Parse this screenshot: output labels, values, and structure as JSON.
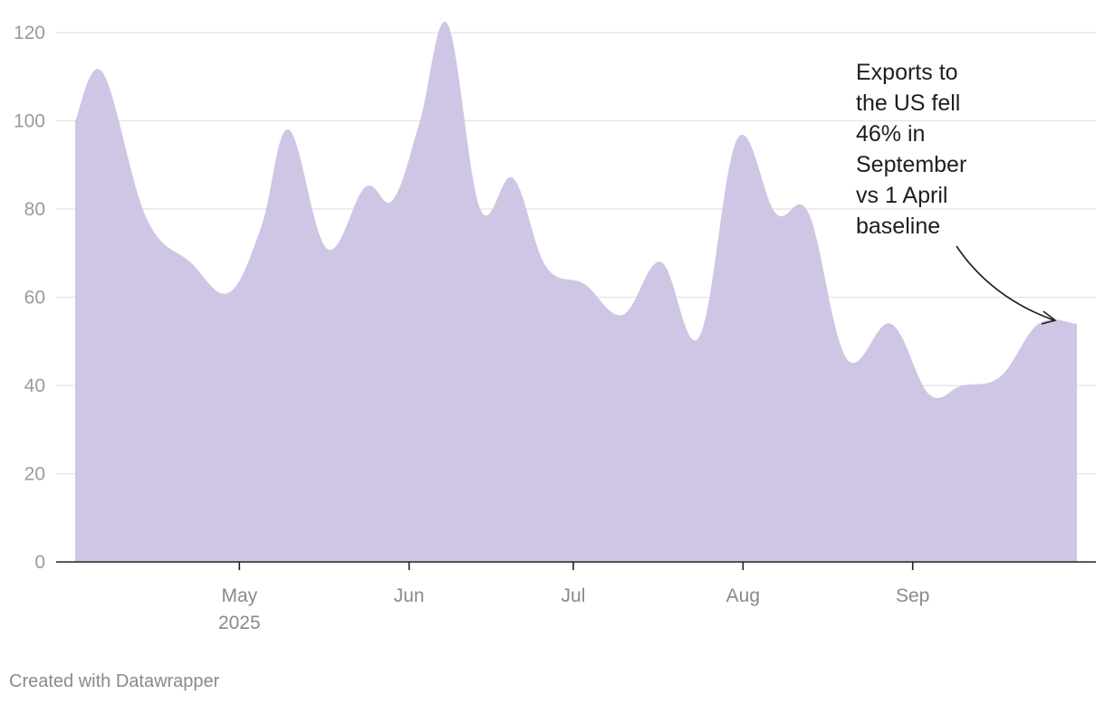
{
  "footer": {
    "credit": "Created with Datawrapper"
  },
  "chart_data": {
    "type": "area",
    "title": "",
    "xlabel": "",
    "ylabel": "",
    "color": "#cfc6e6",
    "ylim": [
      0,
      120
    ],
    "yticks": [
      "0",
      "20",
      "40",
      "60",
      "80",
      "100",
      "120"
    ],
    "xticks": [
      {
        "date": "2025-05-01",
        "label": "May",
        "sublabel": "2025"
      },
      {
        "date": "2025-06-01",
        "label": "Jun",
        "sublabel": ""
      },
      {
        "date": "2025-07-01",
        "label": "Jul",
        "sublabel": ""
      },
      {
        "date": "2025-08-01",
        "label": "Aug",
        "sublabel": ""
      },
      {
        "date": "2025-09-01",
        "label": "Sep",
        "sublabel": ""
      }
    ],
    "grid": true,
    "x": [
      "2025-04-01",
      "2025-04-06",
      "2025-04-14",
      "2025-04-22",
      "2025-04-29",
      "2025-05-05",
      "2025-05-10",
      "2025-05-17",
      "2025-05-24",
      "2025-05-29",
      "2025-06-03",
      "2025-06-08",
      "2025-06-14",
      "2025-06-20",
      "2025-06-26",
      "2025-07-03",
      "2025-07-10",
      "2025-07-17",
      "2025-07-24",
      "2025-07-31",
      "2025-08-07",
      "2025-08-13",
      "2025-08-20",
      "2025-08-28",
      "2025-09-04",
      "2025-09-10",
      "2025-09-17",
      "2025-09-24",
      "2025-10-01"
    ],
    "values": [
      100,
      111,
      78,
      68,
      61,
      76,
      98,
      71,
      85,
      82,
      100,
      122,
      80,
      87,
      67,
      63,
      56,
      68,
      51,
      96,
      79,
      79,
      46,
      54,
      38,
      40,
      42,
      54,
      54
    ],
    "annotation": {
      "lines": [
        "Exports to",
        "the US fell",
        "46% in",
        "September",
        "vs 1 April",
        "baseline"
      ]
    }
  }
}
